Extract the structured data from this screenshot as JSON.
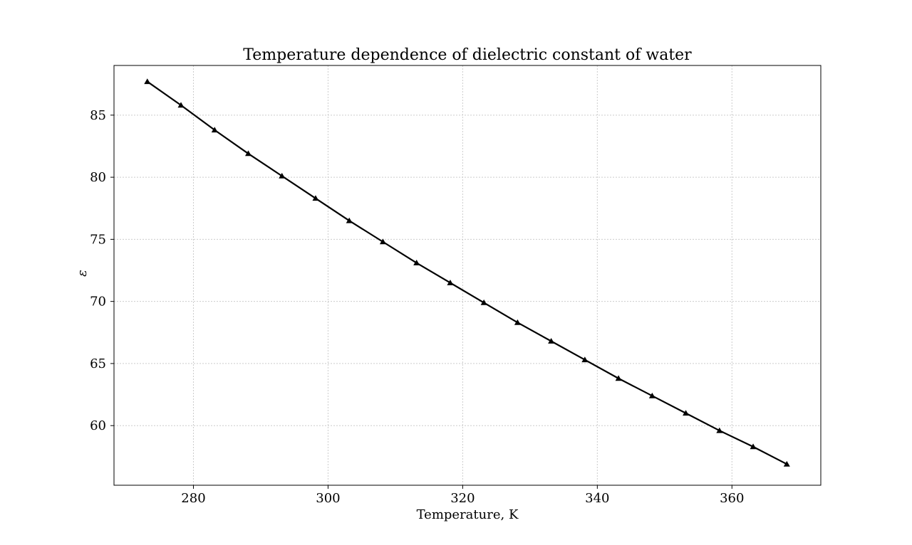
{
  "chart_data": {
    "type": "line",
    "title": "Temperature dependence of dielectric constant of water",
    "xlabel": "Temperature, K",
    "ylabel": "ε",
    "xlim": [
      268.2,
      373.2
    ],
    "ylim": [
      55.2,
      89.0
    ],
    "xticks": [
      280,
      300,
      320,
      340,
      360
    ],
    "yticks": [
      60,
      65,
      70,
      75,
      80,
      85
    ],
    "grid": true,
    "marker": "triangle-up",
    "color": "#000000",
    "series": [
      {
        "x": [
          273.15,
          278.15,
          283.15,
          288.15,
          293.15,
          298.15,
          303.15,
          308.15,
          313.15,
          318.15,
          323.15,
          328.15,
          333.15,
          338.15,
          343.15,
          348.15,
          353.15,
          358.15,
          363.15,
          368.15
        ],
        "values": [
          87.7,
          85.8,
          83.8,
          81.9,
          80.1,
          78.3,
          76.5,
          74.8,
          73.1,
          71.5,
          69.9,
          68.3,
          66.8,
          65.3,
          63.8,
          62.4,
          61.0,
          59.6,
          58.3,
          56.9
        ]
      }
    ]
  }
}
